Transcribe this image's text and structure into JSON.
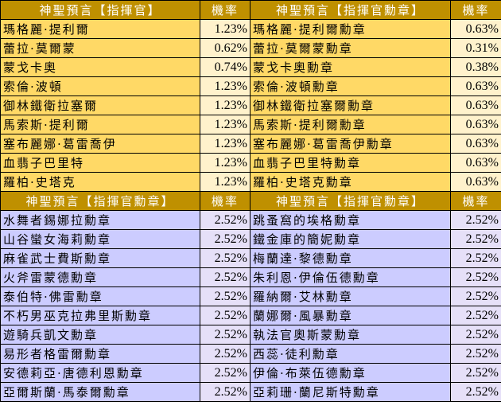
{
  "section1": {
    "headers": [
      "神聖預言【指揮官】",
      "機率",
      "神聖預言【指揮官勳章】",
      "機率"
    ],
    "rows": [
      [
        "瑪格麗·提利爾",
        "1.23%",
        "瑪格麗·提利爾勳章",
        "0.63%"
      ],
      [
        "蕾拉·莫爾蒙",
        "0.62%",
        "蕾拉·莫爾蒙勳章",
        "0.31%"
      ],
      [
        "蒙戈卡奧",
        "0.74%",
        "蒙戈卡奧勳章",
        "0.38%"
      ],
      [
        "索倫·波頓",
        "1.23%",
        "索倫·波頓勳章",
        "0.63%"
      ],
      [
        "御林鐵衛拉塞爾",
        "1.23%",
        "御林鐵衛拉塞爾勳章",
        "0.63%"
      ],
      [
        "馬索斯·提利爾",
        "1.23%",
        "馬索斯·提利爾勳章",
        "0.63%"
      ],
      [
        "塞布麗娜·葛雷喬伊",
        "1.23%",
        "塞布麗娜·葛雷喬伊勳章",
        "0.63%"
      ],
      [
        "血翡子巴里特",
        "1.23%",
        "血翡子巴里特勳章",
        "0.63%"
      ],
      [
        "羅柏·史塔克",
        "1.23%",
        "羅柏·史塔克勳章",
        "0.63%"
      ]
    ]
  },
  "section2": {
    "headers": [
      "神聖預言【指揮官勳章】",
      "機率",
      "神聖預言【指揮官勳章】",
      "機率"
    ],
    "rows": [
      [
        "水舞者錫娜拉勳章",
        "2.52%",
        "跳蚤窩的埃格勳章",
        "2.52%"
      ],
      [
        "山谷蠻女海莉勳章",
        "2.52%",
        "鐵金庫的簡妮勳章",
        "2.52%"
      ],
      [
        "麻雀武士費斯勳章",
        "2.52%",
        "梅蘭達·黎德勳章",
        "2.52%"
      ],
      [
        "火斧雷蒙德勳章",
        "2.52%",
        "朱利恩·伊倫伍德勳章",
        "2.52%"
      ],
      [
        "泰伯特·佛雷勳章",
        "2.52%",
        "羅納爾·艾林勳章",
        "2.52%"
      ],
      [
        "不朽男巫克拉弗里斯勳章",
        "2.52%",
        "蘭娜爾·風暴勳章",
        "2.52%"
      ],
      [
        "遊騎兵凱文勳章",
        "2.52%",
        "執法官奧斯蒙勳章",
        "2.52%"
      ],
      [
        "易形者格雷爾勳章",
        "2.52%",
        "西蕊·徒利勳章",
        "2.52%"
      ],
      [
        "安德莉亞·唐德利恩勳章",
        "2.52%",
        "伊倫·布萊伍德勳章",
        "2.52%"
      ],
      [
        "亞爾斯蘭·馬泰爾勳章",
        "2.52%",
        "亞莉珊·蘭尼斯特勳章",
        "2.52%"
      ]
    ]
  },
  "colors": {
    "header": "#bf9000",
    "yellow": "#ffd966",
    "yellow_light": "#fff2cc",
    "purple": "#ccccff",
    "purple_light": "#e6e0f8"
  }
}
